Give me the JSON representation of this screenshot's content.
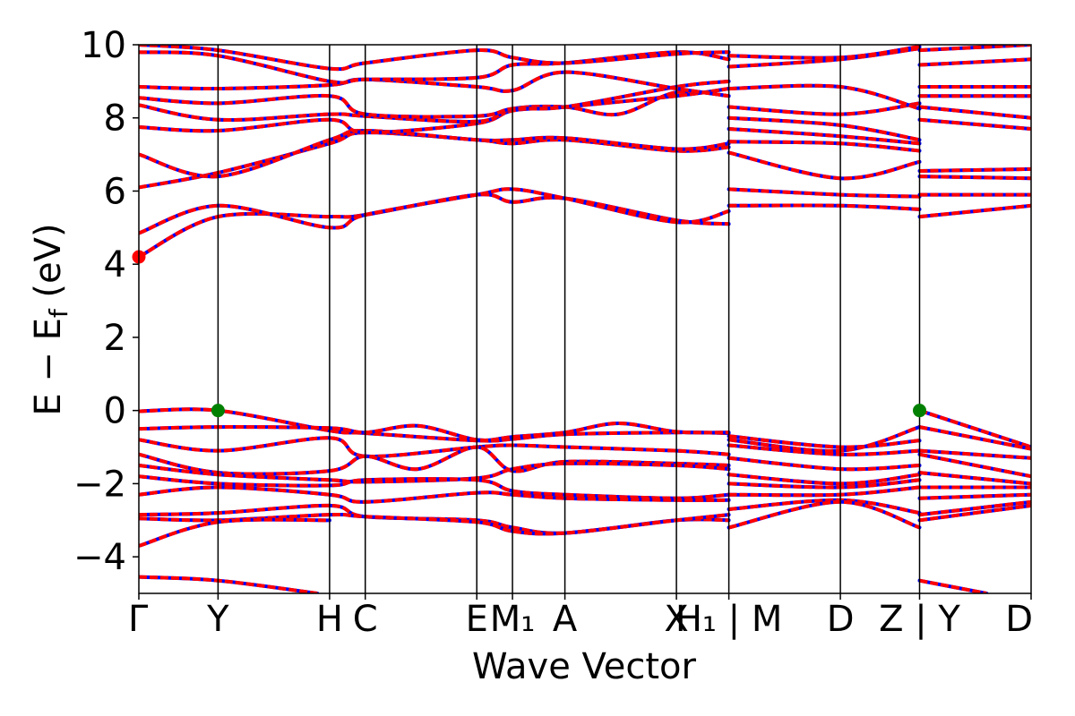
{
  "chart_data": {
    "type": "line",
    "xlabel": "Wave Vector",
    "ylabel_parts": {
      "main": "E − E",
      "sub": "f",
      "unit": " (eV)"
    },
    "ylim": [
      -5,
      10
    ],
    "yticks": [
      -4,
      -2,
      0,
      2,
      4,
      6,
      8,
      10
    ],
    "ytick_labels": [
      "−4",
      "−2",
      "0",
      "2",
      "4",
      "6",
      "8",
      "10"
    ],
    "kpath": [
      {
        "label": "Γ",
        "x": 0.0
      },
      {
        "label": "Y",
        "x": 0.71
      },
      {
        "label": "H",
        "x": 1.71
      },
      {
        "label": "C",
        "x": 2.03
      },
      {
        "label": "E",
        "x": 3.03
      },
      {
        "label": "M₁",
        "x": 3.35
      },
      {
        "label": "A",
        "x": 3.82
      },
      {
        "label": "X",
        "x": 4.82
      },
      {
        "label": "H₁ | M",
        "x": 5.29
      },
      {
        "label": "D",
        "x": 6.29
      },
      {
        "label": "Z | Y",
        "x": 7.0
      },
      {
        "label": "D",
        "x": 8.0
      }
    ],
    "xlim": [
      0,
      8.0
    ],
    "colors": {
      "spin_up": "#0000ff",
      "spin_down": "#ff0000",
      "vbm": "#008000",
      "cbm": "#ff0000"
    },
    "series": [
      {
        "x": [
          0,
          0.71,
          1.71,
          2.03,
          3.03,
          3.35,
          3.82,
          4.82,
          5.29
        ],
        "y": [
          -0.02,
          0.0,
          -0.55,
          -0.62,
          -0.82,
          -0.78,
          -0.65,
          -0.6,
          -0.62
        ]
      },
      {
        "x": [
          5.29,
          6.29,
          7.0
        ],
        "y": [
          -0.7,
          -1.0,
          -0.82
        ]
      },
      {
        "x": [
          7.0,
          8.0
        ],
        "y": [
          0.0,
          -1.0
        ]
      },
      {
        "x": [
          0,
          0.71,
          1.71,
          2.03,
          2.5,
          3.03,
          3.35,
          3.82,
          4.3,
          4.82,
          5.29
        ],
        "y": [
          -0.5,
          -0.45,
          -0.48,
          -0.6,
          -0.42,
          -0.8,
          -0.72,
          -0.6,
          -0.35,
          -0.58,
          -0.6
        ]
      },
      {
        "x": [
          5.29,
          6.29,
          7.0
        ],
        "y": [
          -0.8,
          -1.1,
          -0.45
        ]
      },
      {
        "x": [
          7.0,
          8.0
        ],
        "y": [
          -0.45,
          -1.05
        ]
      },
      {
        "x": [
          0,
          0.71,
          1.71,
          2.03,
          3.03,
          3.35,
          3.82,
          4.82,
          5.29
        ],
        "y": [
          -0.8,
          -1.1,
          -0.75,
          -1.25,
          -1.0,
          -0.95,
          -1.0,
          -1.1,
          -1.2
        ]
      },
      {
        "x": [
          5.29,
          6.29,
          7.0
        ],
        "y": [
          -0.95,
          -1.2,
          -1.1
        ]
      },
      {
        "x": [
          7.0,
          8.0
        ],
        "y": [
          -1.1,
          -1.3
        ]
      },
      {
        "x": [
          0,
          0.71,
          1.71,
          2.03,
          2.5,
          3.03,
          3.35,
          3.82,
          4.82,
          5.29
        ],
        "y": [
          -1.2,
          -1.7,
          -1.65,
          -1.25,
          -1.6,
          -1.0,
          -1.65,
          -1.4,
          -1.45,
          -1.5
        ]
      },
      {
        "x": [
          5.29,
          6.29,
          7.0
        ],
        "y": [
          -1.3,
          -1.6,
          -1.5
        ]
      },
      {
        "x": [
          7.0,
          8.0
        ],
        "y": [
          -1.2,
          -1.8
        ]
      },
      {
        "x": [
          0,
          0.71,
          1.71,
          2.03,
          3.03,
          3.35,
          3.82,
          4.82,
          5.29
        ],
        "y": [
          -1.5,
          -1.75,
          -1.9,
          -1.95,
          -1.85,
          -1.6,
          -1.45,
          -1.5,
          -1.6
        ]
      },
      {
        "x": [
          5.29,
          6.29,
          7.0
        ],
        "y": [
          -1.75,
          -2.0,
          -1.75
        ]
      },
      {
        "x": [
          7.0,
          8.0
        ],
        "y": [
          -1.7,
          -2.0
        ]
      },
      {
        "x": [
          0,
          0.71,
          1.71,
          2.03,
          3.03,
          3.35,
          3.82,
          4.82,
          5.29
        ],
        "y": [
          -1.8,
          -2.0,
          -2.05,
          -1.9,
          -1.9,
          -2.2,
          -2.3,
          -2.4,
          -2.3
        ]
      },
      {
        "x": [
          5.29,
          6.29,
          7.0
        ],
        "y": [
          -2.0,
          -2.1,
          -1.9
        ]
      },
      {
        "x": [
          7.0,
          8.0
        ],
        "y": [
          -2.1,
          -2.1
        ]
      },
      {
        "x": [
          0,
          0.71,
          1.71,
          2.03,
          3.03,
          3.35,
          3.82,
          4.82,
          5.29
        ],
        "y": [
          -2.3,
          -2.1,
          -2.3,
          -2.5,
          -2.25,
          -2.3,
          -2.4,
          -2.45,
          -2.45
        ]
      },
      {
        "x": [
          5.29,
          6.29,
          7.0
        ],
        "y": [
          -2.3,
          -2.3,
          -2.1
        ]
      },
      {
        "x": [
          7.0,
          8.0
        ],
        "y": [
          -2.4,
          -2.3
        ]
      },
      {
        "x": [
          0,
          0.71,
          1.71,
          2.03,
          3.03,
          3.35,
          3.82,
          4.82,
          5.29
        ],
        "y": [
          -2.85,
          -2.8,
          -2.6,
          -2.9,
          -3.0,
          -3.2,
          -3.35,
          -3.0,
          -3.0
        ]
      },
      {
        "x": [
          5.29,
          6.29,
          7.0
        ],
        "y": [
          -2.7,
          -2.45,
          -2.8
        ]
      },
      {
        "x": [
          7.0,
          8.0
        ],
        "y": [
          -2.85,
          -2.5
        ]
      },
      {
        "x": [
          0,
          0.71,
          1.71,
          2.03,
          3.03,
          3.35,
          3.82,
          4.82,
          5.29
        ],
        "y": [
          -2.95,
          -3.0,
          -2.85,
          -2.9,
          -3.05,
          -3.3,
          -3.35,
          -3.0,
          -2.85
        ]
      },
      {
        "x": [
          5.29,
          6.29,
          7.0
        ],
        "y": [
          -3.2,
          -2.5,
          -3.2
        ]
      },
      {
        "x": [
          7.0,
          8.0
        ],
        "y": [
          -3.0,
          -2.6
        ]
      },
      {
        "x": [
          0,
          0.71,
          1.71
        ],
        "y": [
          -3.7,
          -3.05,
          -3.0
        ]
      },
      {
        "x": [
          0,
          0.71,
          1.6
        ],
        "y": [
          -4.55,
          -4.65,
          -5.0
        ]
      },
      {
        "x": [
          7.0,
          7.6
        ],
        "y": [
          -4.65,
          -5.0
        ]
      },
      {
        "x": [
          0,
          0.71,
          1.71,
          2.03,
          3.03,
          3.35,
          3.82,
          4.82,
          5.29
        ],
        "y": [
          4.2,
          5.3,
          5.3,
          5.35,
          5.9,
          5.7,
          5.8,
          5.2,
          5.1
        ]
      },
      {
        "x": [
          5.29,
          6.29,
          7.0
        ],
        "y": [
          5.6,
          5.6,
          5.5
        ]
      },
      {
        "x": [
          7.0,
          8.0
        ],
        "y": [
          5.3,
          5.6
        ]
      },
      {
        "x": [
          0,
          0.71,
          1.71,
          2.03,
          3.03,
          3.35,
          3.82,
          4.82,
          5.29
        ],
        "y": [
          4.85,
          5.6,
          5.0,
          5.35,
          5.9,
          6.05,
          5.8,
          5.15,
          5.45
        ]
      },
      {
        "x": [
          5.29,
          6.29,
          7.0
        ],
        "y": [
          6.05,
          5.9,
          5.85
        ]
      },
      {
        "x": [
          7.0,
          8.0
        ],
        "y": [
          5.9,
          5.9
        ]
      },
      {
        "x": [
          0,
          0.71,
          1.71,
          2.03,
          3.03,
          3.35,
          3.82,
          4.82,
          5.29
        ],
        "y": [
          6.1,
          6.5,
          7.3,
          7.6,
          7.4,
          7.3,
          7.4,
          7.1,
          7.2
        ]
      },
      {
        "x": [
          5.29,
          6.29,
          7.0
        ],
        "y": [
          7.05,
          6.35,
          6.8
        ]
      },
      {
        "x": [
          7.0,
          8.0
        ],
        "y": [
          6.4,
          6.35
        ]
      },
      {
        "x": [
          0,
          0.71,
          1.71,
          2.03,
          3.03,
          3.35,
          3.82,
          4.82,
          5.29
        ],
        "y": [
          7.0,
          6.4,
          7.4,
          7.65,
          7.4,
          7.4,
          7.45,
          7.15,
          7.3
        ]
      },
      {
        "x": [
          5.29,
          6.29,
          7.0
        ],
        "y": [
          7.35,
          7.3,
          7.1
        ]
      },
      {
        "x": [
          7.0,
          8.0
        ],
        "y": [
          6.55,
          6.6
        ]
      },
      {
        "x": [
          0,
          0.71,
          1.71,
          2.03,
          3.03,
          3.35,
          3.82,
          4.82,
          5.29
        ],
        "y": [
          7.75,
          7.65,
          7.95,
          7.6,
          7.85,
          8.2,
          8.3,
          8.6,
          8.8
        ]
      },
      {
        "x": [
          5.29,
          6.29,
          7.0
        ],
        "y": [
          7.7,
          7.5,
          7.3
        ]
      },
      {
        "x": [
          7.0,
          8.0
        ],
        "y": [
          7.95,
          7.7
        ]
      },
      {
        "x": [
          0,
          0.71,
          1.71,
          2.03,
          3.03,
          3.35,
          3.82,
          4.3,
          4.82,
          5.29
        ],
        "y": [
          8.35,
          7.95,
          8.1,
          8.05,
          7.9,
          8.25,
          8.3,
          8.1,
          8.7,
          8.6
        ]
      },
      {
        "x": [
          5.29,
          6.29,
          7.0
        ],
        "y": [
          8.0,
          7.8,
          7.4
        ]
      },
      {
        "x": [
          7.0,
          8.0
        ],
        "y": [
          8.3,
          8.0
        ]
      },
      {
        "x": [
          0,
          0.71,
          1.71,
          2.03,
          3.03,
          3.35,
          3.82,
          4.82,
          5.29
        ],
        "y": [
          8.55,
          8.4,
          8.6,
          8.1,
          8.05,
          8.25,
          8.3,
          8.85,
          9.0
        ]
      },
      {
        "x": [
          5.29,
          6.29,
          7.0
        ],
        "y": [
          8.3,
          8.1,
          8.4
        ]
      },
      {
        "x": [
          7.0,
          8.0
        ],
        "y": [
          8.6,
          8.6
        ]
      },
      {
        "x": [
          0,
          0.71,
          1.71,
          2.03,
          3.03,
          3.35,
          3.82,
          4.82,
          5.29
        ],
        "y": [
          8.85,
          8.8,
          8.9,
          9.05,
          8.85,
          8.75,
          9.25,
          8.8,
          8.6
        ]
      },
      {
        "x": [
          5.29,
          6.29,
          7.0
        ],
        "y": [
          8.8,
          8.85,
          8.25
        ]
      },
      {
        "x": [
          7.0,
          8.0
        ],
        "y": [
          8.85,
          8.85
        ]
      },
      {
        "x": [
          0,
          0.71,
          1.71,
          2.03,
          3.03,
          3.35,
          3.82,
          4.82,
          5.29
        ],
        "y": [
          9.8,
          9.7,
          9.0,
          9.05,
          9.1,
          9.45,
          9.5,
          9.8,
          9.6
        ]
      },
      {
        "x": [
          5.29,
          6.29,
          7.0
        ],
        "y": [
          9.4,
          9.6,
          9.9
        ]
      },
      {
        "x": [
          7.0,
          8.0
        ],
        "y": [
          9.45,
          9.6
        ]
      },
      {
        "x": [
          0,
          0.71,
          1.71,
          2.03,
          3.03,
          3.35,
          3.82,
          4.82,
          5.29
        ],
        "y": [
          10.0,
          9.85,
          9.35,
          9.5,
          9.85,
          9.65,
          9.5,
          9.75,
          9.8
        ]
      },
      {
        "x": [
          5.29,
          6.29,
          7.0
        ],
        "y": [
          9.7,
          9.65,
          9.95
        ]
      },
      {
        "x": [
          7.0,
          8.0
        ],
        "y": [
          9.85,
          10.0
        ]
      }
    ],
    "markers": [
      {
        "x": 0.71,
        "y": 0.0,
        "kind": "vbm"
      },
      {
        "x": 7.0,
        "y": 0.0,
        "kind": "vbm"
      },
      {
        "x": 0.0,
        "y": 4.2,
        "kind": "cbm"
      }
    ]
  }
}
